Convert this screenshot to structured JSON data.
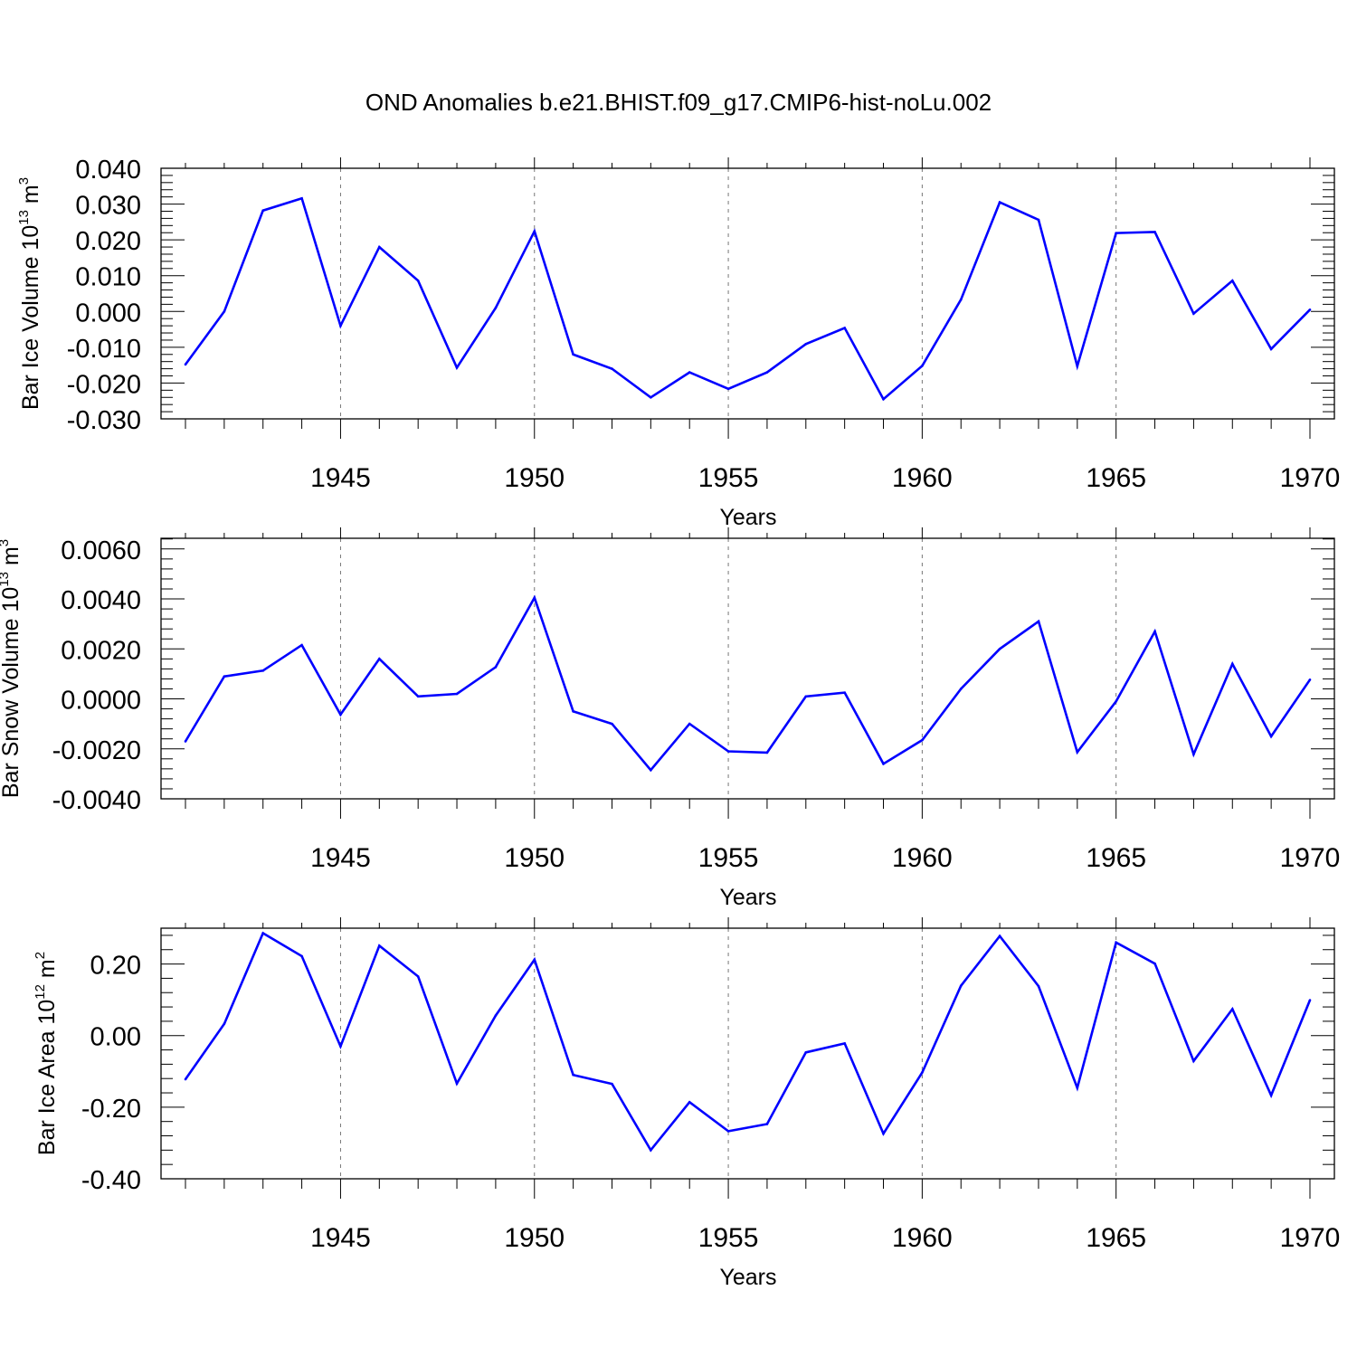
{
  "title": "OND Anomalies b.e21.BHIST.f09_g17.CMIP6-hist-noLu.002",
  "colors": {
    "line": "#0000ff",
    "axis": "#000000",
    "grid": "#777777"
  },
  "chart_data": [
    {
      "type": "line",
      "ylabel": {
        "main": "Bar Ice Volume 10",
        "sup": "13",
        "unit": " m",
        "unitsup": "3"
      },
      "xlabel": "Years",
      "xlim": [
        1941,
        1970
      ],
      "ylim": [
        -0.03,
        0.04
      ],
      "yticks": [
        0.04,
        0.03,
        0.02,
        0.01,
        0.0,
        -0.01,
        -0.02,
        -0.03
      ],
      "ytick_labels": [
        "0.040",
        "0.030",
        "0.020",
        "0.010",
        "0.000",
        "-0.010",
        "-0.020",
        "-0.030"
      ],
      "xticks": [
        1945,
        1950,
        1955,
        1960,
        1965,
        1970
      ],
      "xtick_labels": [
        "1945",
        "1950",
        "1955",
        "1960",
        "1965",
        "1970"
      ],
      "grid": "vertical dashed at labeled years",
      "x": [
        1941,
        1942,
        1943,
        1944,
        1945,
        1946,
        1947,
        1948,
        1949,
        1950,
        1951,
        1952,
        1953,
        1954,
        1955,
        1956,
        1957,
        1958,
        1959,
        1960,
        1961,
        1962,
        1963,
        1964,
        1965,
        1966,
        1967,
        1968,
        1969,
        1970
      ],
      "series": [
        {
          "values": [
            -0.0148,
            0.0,
            0.0282,
            0.0316,
            -0.004,
            0.018,
            0.0086,
            -0.0157,
            0.001,
            0.0224,
            -0.012,
            -0.016,
            -0.024,
            -0.017,
            -0.0216,
            -0.017,
            -0.0091,
            -0.0046,
            -0.0245,
            -0.0152,
            0.0033,
            0.0305,
            0.0256,
            -0.0153,
            0.0219,
            0.0222,
            -0.0006,
            0.0086,
            -0.0105,
            0.0005
          ]
        }
      ]
    },
    {
      "type": "line",
      "ylabel": {
        "main": "Bar Snow Volume 10",
        "sup": "13",
        "unit": " m",
        "unitsup": "3"
      },
      "xlabel": "Years",
      "xlim": [
        1941,
        1970
      ],
      "ylim": [
        -0.004,
        0.0065
      ],
      "yticks": [
        0.006,
        0.004,
        0.002,
        0.0,
        -0.002,
        -0.004
      ],
      "ytick_labels": [
        "0.0060",
        "0.0040",
        "0.0020",
        "0.0000",
        "-0.0020",
        "-0.0040"
      ],
      "xticks": [
        1945,
        1950,
        1955,
        1960,
        1965,
        1970
      ],
      "xtick_labels": [
        "1945",
        "1950",
        "1955",
        "1960",
        "1965",
        "1970"
      ],
      "grid": "vertical dashed at labeled years",
      "x": [
        1941,
        1942,
        1943,
        1944,
        1945,
        1946,
        1947,
        1948,
        1949,
        1950,
        1951,
        1952,
        1953,
        1954,
        1955,
        1956,
        1957,
        1958,
        1959,
        1960,
        1961,
        1962,
        1963,
        1964,
        1965,
        1966,
        1967,
        1968,
        1969,
        1970
      ],
      "series": [
        {
          "values": [
            -0.0017,
            0.0009,
            0.00113,
            0.00215,
            -0.00063,
            0.0016,
            0.0001,
            0.0002,
            0.00127,
            0.00405,
            -0.0005,
            -0.001,
            -0.00285,
            -0.001,
            -0.0021,
            -0.00215,
            0.0001,
            0.00025,
            -0.0026,
            -0.00165,
            0.0004,
            0.002,
            0.0031,
            -0.00213,
            -0.0001,
            0.0027,
            -0.00222,
            0.0014,
            -0.0015,
            0.00077
          ]
        }
      ]
    },
    {
      "type": "line",
      "ylabel": {
        "main": "Bar Ice Area 10",
        "sup": "12",
        "unit": " m",
        "unitsup": "2"
      },
      "xlabel": "Years",
      "xlim": [
        1941,
        1970
      ],
      "ylim": [
        -0.4,
        0.3
      ],
      "yticks": [
        0.2,
        0.0,
        -0.2,
        -0.4
      ],
      "ytick_labels": [
        "0.20",
        "0.00",
        "-0.20",
        "-0.40"
      ],
      "xticks": [
        1945,
        1950,
        1955,
        1960,
        1965,
        1970
      ],
      "xtick_labels": [
        "1945",
        "1950",
        "1955",
        "1960",
        "1965",
        "1970"
      ],
      "grid": "vertical dashed at labeled years",
      "x": [
        1941,
        1942,
        1943,
        1944,
        1945,
        1946,
        1947,
        1948,
        1949,
        1950,
        1951,
        1952,
        1953,
        1954,
        1955,
        1956,
        1957,
        1958,
        1959,
        1960,
        1961,
        1962,
        1963,
        1964,
        1965,
        1966,
        1967,
        1968,
        1969,
        1970
      ],
      "series": [
        {
          "values": [
            -0.122,
            0.033,
            0.286,
            0.222,
            -0.03,
            0.251,
            0.165,
            -0.134,
            0.056,
            0.212,
            -0.11,
            -0.135,
            -0.32,
            -0.186,
            -0.267,
            -0.247,
            -0.047,
            -0.022,
            -0.274,
            -0.103,
            0.139,
            0.278,
            0.138,
            -0.146,
            0.26,
            0.201,
            -0.071,
            0.074,
            -0.167,
            0.099
          ]
        }
      ]
    }
  ]
}
